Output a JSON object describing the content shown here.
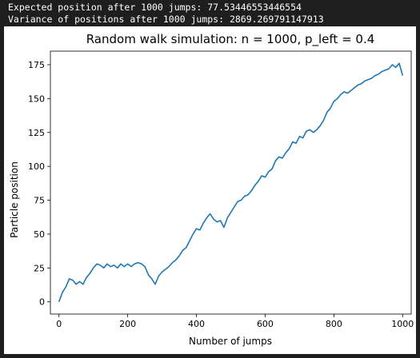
{
  "console": {
    "lines": [
      "Expected position after 1000 jumps: 77.53446553446554",
      "Variance of positions after 1000 jumps: 2869.269791147913"
    ]
  },
  "chart_data": {
    "type": "line",
    "title": "Random walk simulation: n = 1000, p_left = 0.4",
    "xlabel": "Number of jumps",
    "ylabel": "Particle position",
    "xlim": [
      -25,
      1025
    ],
    "ylim": [
      -9,
      185
    ],
    "xticks": [
      0,
      200,
      400,
      600,
      800,
      1000
    ],
    "yticks": [
      0,
      25,
      50,
      75,
      100,
      125,
      150,
      175
    ],
    "grid": false,
    "color": "#1f77b4",
    "series": [
      {
        "x": [
          0,
          10,
          20,
          30,
          40,
          50,
          60,
          70,
          80,
          90,
          100,
          110,
          120,
          130,
          140,
          150,
          160,
          170,
          180,
          190,
          200,
          210,
          220,
          230,
          240,
          250,
          260,
          270,
          280,
          290,
          300,
          310,
          320,
          330,
          340,
          350,
          360,
          370,
          380,
          390,
          400,
          410,
          420,
          430,
          440,
          450,
          460,
          470,
          480,
          490,
          500,
          510,
          520,
          530,
          540,
          550,
          560,
          570,
          580,
          590,
          600,
          610,
          620,
          630,
          640,
          650,
          660,
          670,
          680,
          690,
          700,
          710,
          720,
          730,
          740,
          750,
          760,
          770,
          780,
          790,
          800,
          810,
          820,
          830,
          840,
          850,
          860,
          870,
          880,
          890,
          900,
          910,
          920,
          930,
          940,
          950,
          960,
          970,
          980,
          990,
          1000
        ],
        "y": [
          0,
          7,
          11,
          17,
          16,
          13,
          15,
          13,
          18,
          21,
          25,
          28,
          27,
          25,
          28,
          26,
          27,
          25,
          28,
          26,
          28,
          26,
          28,
          29,
          28,
          26,
          20,
          17,
          13,
          19,
          22,
          24,
          26,
          29,
          31,
          34,
          38,
          40,
          45,
          50,
          54,
          53,
          58,
          62,
          65,
          61,
          59,
          60,
          55,
          62,
          66,
          70,
          74,
          75,
          78,
          79,
          82,
          86,
          89,
          93,
          92,
          96,
          98,
          104,
          107,
          106,
          110,
          113,
          118,
          117,
          122,
          121,
          126,
          127,
          125,
          127,
          130,
          134,
          140,
          143,
          148,
          150,
          153,
          155,
          154,
          156,
          158,
          160,
          161,
          163,
          164,
          165,
          167,
          168,
          170,
          171,
          172,
          175,
          173,
          176,
          167
        ]
      }
    ]
  }
}
